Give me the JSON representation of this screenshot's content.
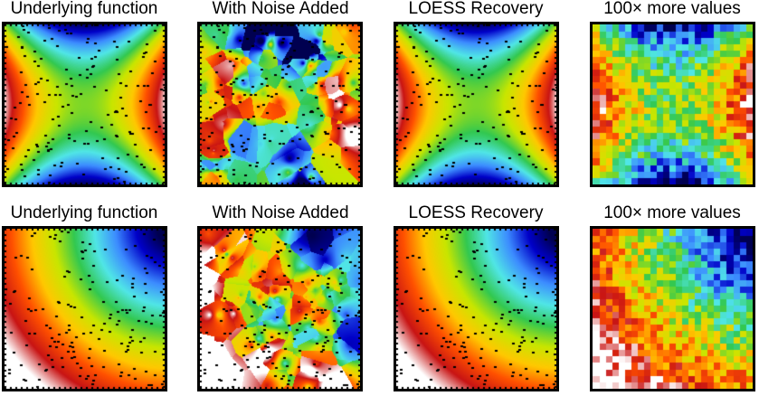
{
  "rows": [
    {
      "function": "saddle",
      "panels": [
        {
          "title": "Underlying function",
          "style": "smooth"
        },
        {
          "title": "With Noise Added",
          "style": "noisy"
        },
        {
          "title": "LOESS Recovery",
          "style": "smooth"
        },
        {
          "title": "100× more values",
          "style": "pixelated"
        }
      ]
    },
    {
      "function": "radial-corner",
      "panels": [
        {
          "title": "Underlying function",
          "style": "smooth"
        },
        {
          "title": "With Noise Added",
          "style": "noisy"
        },
        {
          "title": "LOESS Recovery",
          "style": "smooth"
        },
        {
          "title": "100× more values",
          "style": "pixelated"
        }
      ]
    }
  ],
  "colormap": [
    "#ffffff",
    "#c81414",
    "#ff5000",
    "#ffc800",
    "#c8e600",
    "#32c850",
    "#50e6e6",
    "#3c8cff",
    "#0000c8",
    "#000050"
  ]
}
